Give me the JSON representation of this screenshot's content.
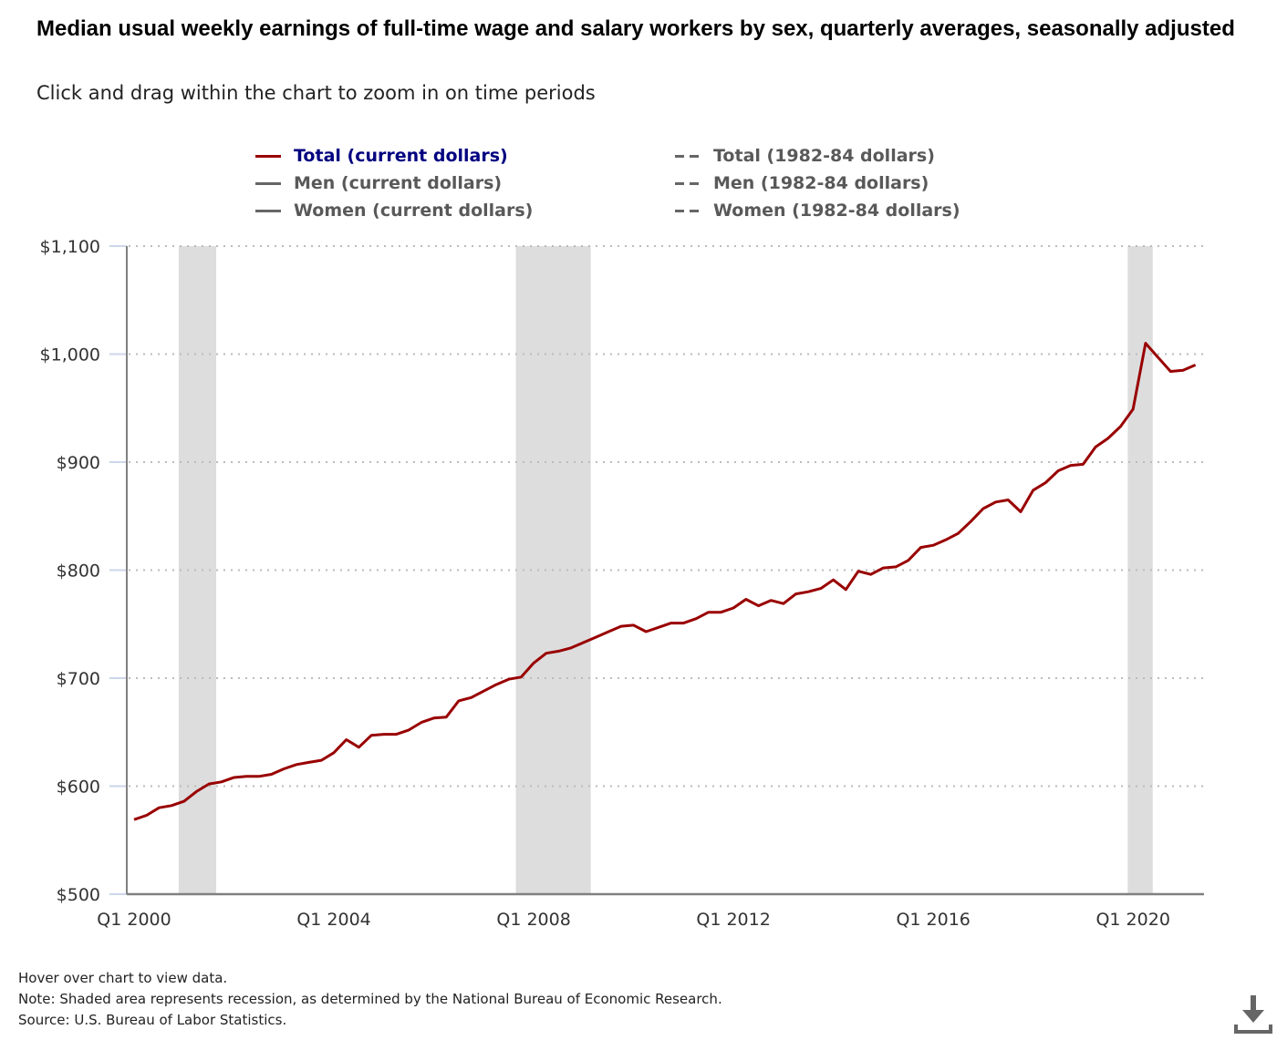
{
  "header": {
    "title": "Median usual weekly earnings of full-time wage and salary workers by sex, quarterly averages, seasonally adjusted",
    "subtitle": "Click and drag within the chart to zoom in on time periods"
  },
  "legend": [
    {
      "label": "Total (current dollars)",
      "style": "solid",
      "color": "#990000",
      "active": true
    },
    {
      "label": "Total (1982-84 dollars)",
      "style": "dash",
      "color": "#666666",
      "active": false
    },
    {
      "label": "Men (current dollars)",
      "style": "solid",
      "color": "#666666",
      "active": false
    },
    {
      "label": "Men (1982-84 dollars)",
      "style": "dash",
      "color": "#666666",
      "active": false
    },
    {
      "label": "Women (current dollars)",
      "style": "solid",
      "color": "#666666",
      "active": false
    },
    {
      "label": "Women (1982-84 dollars)",
      "style": "dash",
      "color": "#666666",
      "active": false
    }
  ],
  "notes": {
    "hover": "Hover over chart to view data.",
    "note": "Note: Shaded area represents recession, as determined by the National Bureau of Economic Research.",
    "source": "Source: U.S. Bureau of Labor Statistics."
  },
  "icons": {
    "download": "download-icon"
  },
  "colors": {
    "line": "#990000",
    "recession": "#dddddd",
    "grid": "#bbbbbb",
    "axis": "#808080"
  },
  "chart_data": {
    "type": "line",
    "title": "Median usual weekly earnings of full-time wage and salary workers by sex, quarterly averages, seasonally adjusted",
    "xlabel": "",
    "ylabel": "",
    "ylim": [
      500,
      1100
    ],
    "yticks": [
      500,
      600,
      700,
      800,
      900,
      1000,
      1100
    ],
    "ytick_labels": [
      "$500",
      "$600",
      "$700",
      "$800",
      "$900",
      "$1,000",
      "$1,100"
    ],
    "xtick_labels": [
      "Q1 2000",
      "Q1 2004",
      "Q1 2008",
      "Q1 2012",
      "Q1 2016",
      "Q1 2020"
    ],
    "xtick_index": [
      0,
      16,
      32,
      48,
      64,
      80
    ],
    "grid": "horizontal dotted",
    "legend_position": "top",
    "recessions": [
      {
        "start": "Q1 2001",
        "end": "Q4 2001"
      },
      {
        "start": "Q4 2007",
        "end": "Q2 2009"
      },
      {
        "start": "Q1 2020",
        "end": "Q2 2020"
      }
    ],
    "recession_index": [
      [
        4,
        7
      ],
      [
        31,
        37
      ],
      [
        80,
        82
      ]
    ],
    "x": [
      "Q1 2000",
      "Q2 2000",
      "Q3 2000",
      "Q4 2000",
      "Q1 2001",
      "Q2 2001",
      "Q3 2001",
      "Q4 2001",
      "Q1 2002",
      "Q2 2002",
      "Q3 2002",
      "Q4 2002",
      "Q1 2003",
      "Q2 2003",
      "Q3 2003",
      "Q4 2003",
      "Q1 2004",
      "Q2 2004",
      "Q3 2004",
      "Q4 2004",
      "Q1 2005",
      "Q2 2005",
      "Q3 2005",
      "Q4 2005",
      "Q1 2006",
      "Q2 2006",
      "Q3 2006",
      "Q4 2006",
      "Q1 2007",
      "Q2 2007",
      "Q3 2007",
      "Q4 2007",
      "Q1 2008",
      "Q2 2008",
      "Q3 2008",
      "Q4 2008",
      "Q1 2009",
      "Q2 2009",
      "Q3 2009",
      "Q4 2009",
      "Q1 2010",
      "Q2 2010",
      "Q3 2010",
      "Q4 2010",
      "Q1 2011",
      "Q2 2011",
      "Q3 2011",
      "Q4 2011",
      "Q1 2012",
      "Q2 2012",
      "Q3 2012",
      "Q4 2012",
      "Q1 2013",
      "Q2 2013",
      "Q3 2013",
      "Q4 2013",
      "Q1 2014",
      "Q2 2014",
      "Q3 2014",
      "Q4 2014",
      "Q1 2015",
      "Q2 2015",
      "Q3 2015",
      "Q4 2015",
      "Q1 2016",
      "Q2 2016",
      "Q3 2016",
      "Q4 2016",
      "Q1 2017",
      "Q2 2017",
      "Q3 2017",
      "Q4 2017",
      "Q1 2018",
      "Q2 2018",
      "Q3 2018",
      "Q4 2018",
      "Q1 2019",
      "Q2 2019",
      "Q3 2019",
      "Q4 2019",
      "Q1 2020",
      "Q2 2020",
      "Q3 2020",
      "Q4 2020",
      "Q1 2021",
      "Q2 2021"
    ],
    "series": [
      {
        "name": "Total (current dollars)",
        "values": [
          569,
          573,
          580,
          582,
          586,
          595,
          602,
          604,
          608,
          609,
          609,
          611,
          616,
          620,
          622,
          624,
          631,
          643,
          636,
          647,
          648,
          648,
          652,
          659,
          663,
          664,
          679,
          682,
          688,
          694,
          699,
          701,
          714,
          723,
          725,
          728,
          733,
          738,
          743,
          748,
          749,
          743,
          747,
          751,
          751,
          755,
          761,
          761,
          765,
          773,
          767,
          772,
          769,
          778,
          780,
          783,
          791,
          782,
          799,
          796,
          802,
          803,
          809,
          821,
          823,
          828,
          834,
          845,
          857,
          863,
          865,
          854,
          874,
          881,
          892,
          897,
          898,
          914,
          922,
          933,
          949,
          1010,
          997,
          984,
          985,
          990
        ]
      }
    ]
  }
}
